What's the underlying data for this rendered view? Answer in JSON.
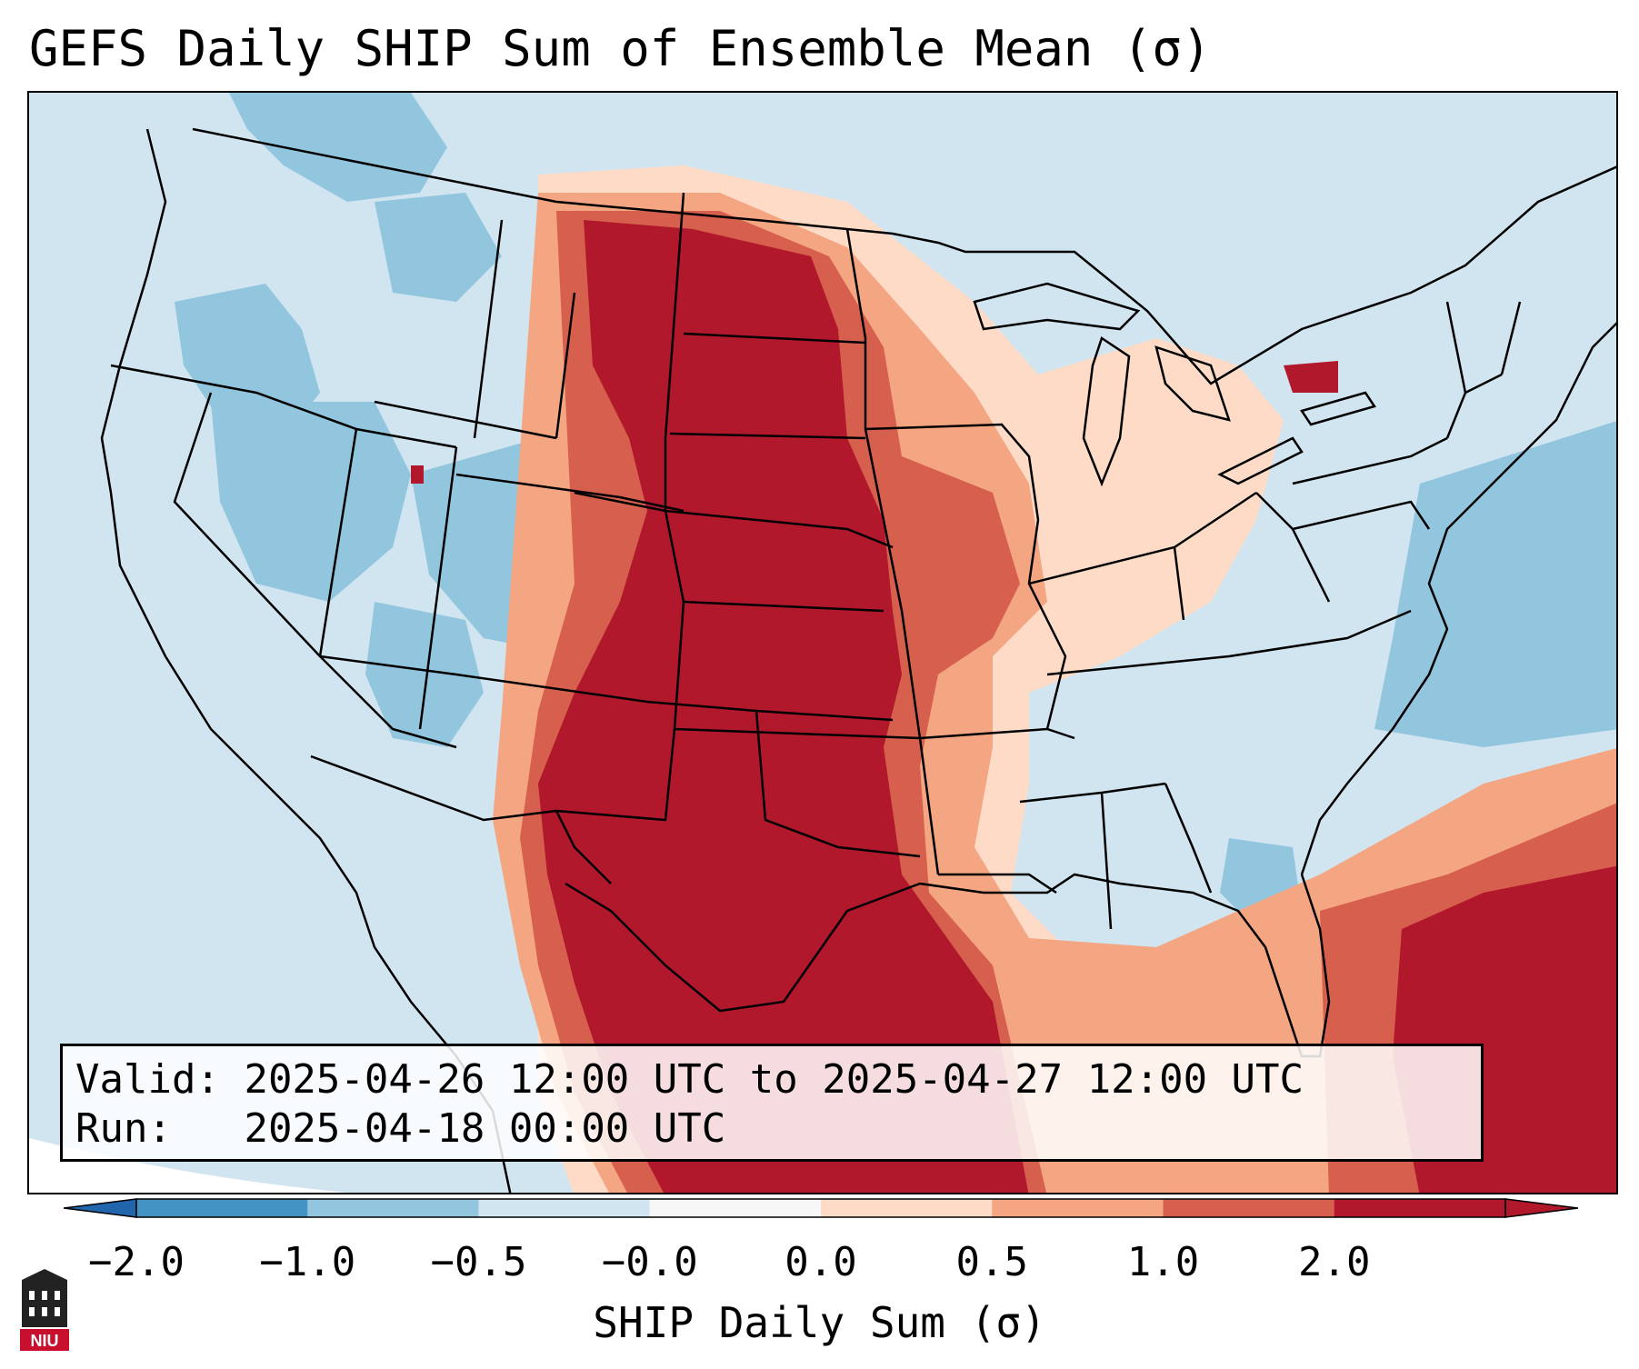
{
  "title": "GEFS Daily SHIP Sum of Ensemble Mean (σ)",
  "info": {
    "valid_label": "Valid:",
    "valid_value": "2025-04-26 12:00 UTC to 2025-04-27 12:00 UTC",
    "run_label": "Run:",
    "run_value": "2025-04-18 00:00 UTC"
  },
  "colorbar": {
    "label": "SHIP Daily Sum (σ)",
    "ticks": [
      "−2.0",
      "−1.0",
      "−0.5",
      "−0.0",
      "0.0",
      "0.5",
      "1.0",
      "2.0"
    ],
    "colors": [
      "#4393c3",
      "#92c5de",
      "#d1e5f0",
      "#f7f7f7",
      "#fddbc7",
      "#f4a582",
      "#d6604d",
      "#b2182b"
    ],
    "extend_low_color": "#2166ac",
    "extend_high_color": "#b2182b"
  },
  "map": {
    "background_color": "#d1e5f0",
    "outline_color": "#000000"
  },
  "logo": {
    "text": "NIU",
    "color": "#c8102e"
  }
}
